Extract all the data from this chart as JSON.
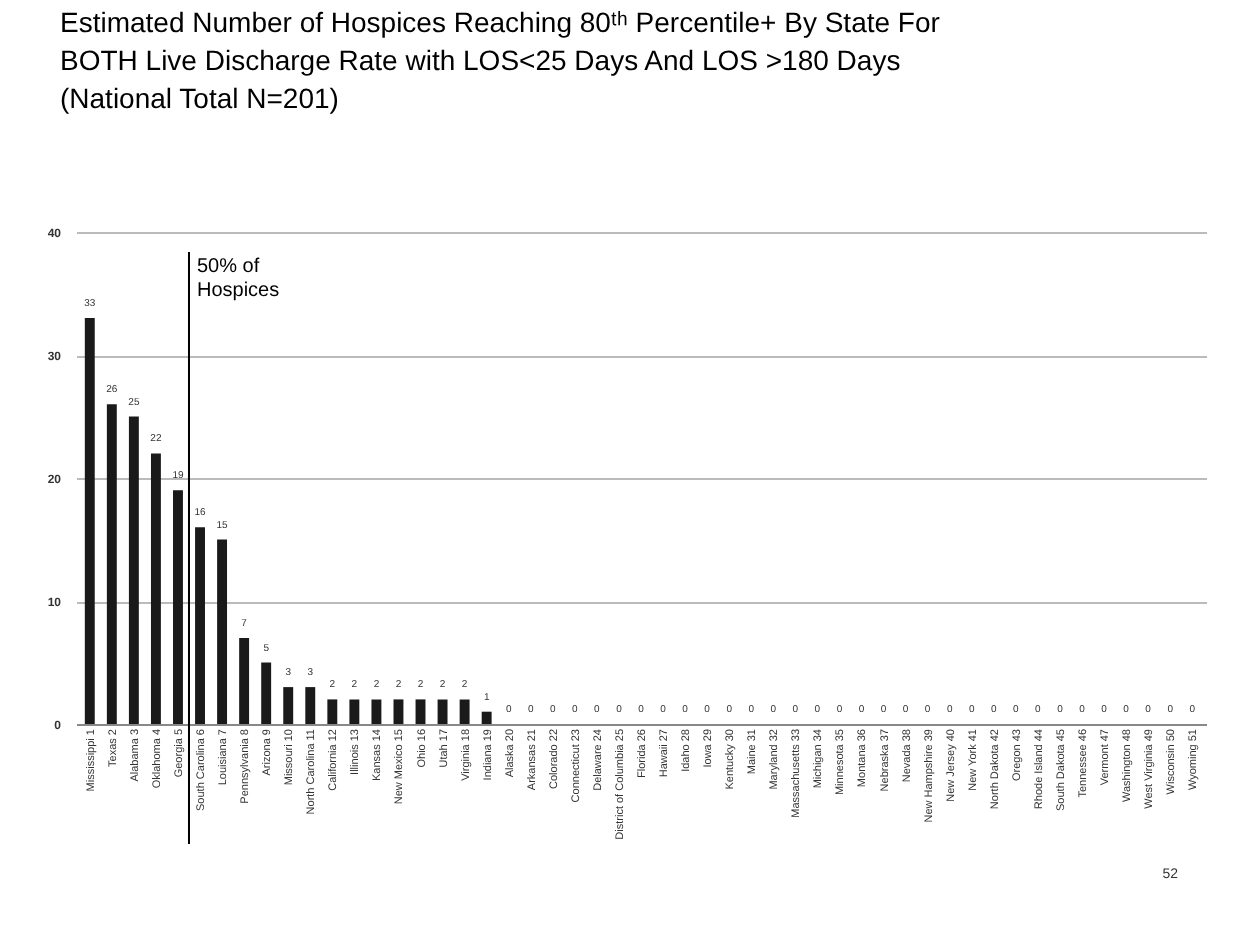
{
  "chart_data": {
    "type": "bar",
    "title": "Estimated Number of Hospices Reaching 80ᵗʰ Percentile+ By State For\nBOTH Live Discharge Rate with LOS<25 Days And LOS >180 Days\n(National Total N=201)",
    "categories": [
      "Mississippi 1",
      "Texas 2",
      "Alabama 3",
      "Oklahoma 4",
      "Georgia 5",
      "South Carolina 6",
      "Louisiana 7",
      "Pennsylvania 8",
      "Arizona 9",
      "Missouri 10",
      "North Carolina 11",
      "California 12",
      "Illinois 13",
      "Kansas 14",
      "New Mexico 15",
      "Ohio 16",
      "Utah 17",
      "Virginia 18",
      "Indiana 19",
      "Alaska 20",
      "Arkansas 21",
      "Colorado 22",
      "Connecticut 23",
      "Delaware 24",
      "District of Columbia 25",
      "Florida 26",
      "Hawaii 27",
      "Idaho 28",
      "Iowa 29",
      "Kentucky 30",
      "Maine 31",
      "Maryland 32",
      "Massachusetts 33",
      "Michigan 34",
      "Minnesota 35",
      "Montana 36",
      "Nebraska 37",
      "Nevada 38",
      "New Hampshire 39",
      "New Jersey 40",
      "New York 41",
      "North Dakota 42",
      "Oregon 43",
      "Rhode Island 44",
      "South Dakota 45",
      "Tennessee 46",
      "Vermont 47",
      "Washington 48",
      "West Virginia 49",
      "Wisconsin 50",
      "Wyoming 51"
    ],
    "values": [
      33,
      26,
      25,
      22,
      19,
      16,
      15,
      7,
      5,
      3,
      3,
      2,
      2,
      2,
      2,
      2,
      2,
      2,
      1,
      0,
      0,
      0,
      0,
      0,
      0,
      0,
      0,
      0,
      0,
      0,
      0,
      0,
      0,
      0,
      0,
      0,
      0,
      0,
      0,
      0,
      0,
      0,
      0,
      0,
      0,
      0,
      0,
      0,
      0,
      0,
      0
    ],
    "color": "#1a1a1a",
    "ylim": [
      0,
      40
    ],
    "yticks": [
      0,
      10,
      20,
      30,
      40
    ],
    "grid": "y",
    "data_labels": true,
    "ref_lines": [
      {
        "axis": "x",
        "value": "Georgia 5",
        "label": "50% of\nHospices"
      }
    ],
    "annotations": [
      "52"
    ]
  }
}
